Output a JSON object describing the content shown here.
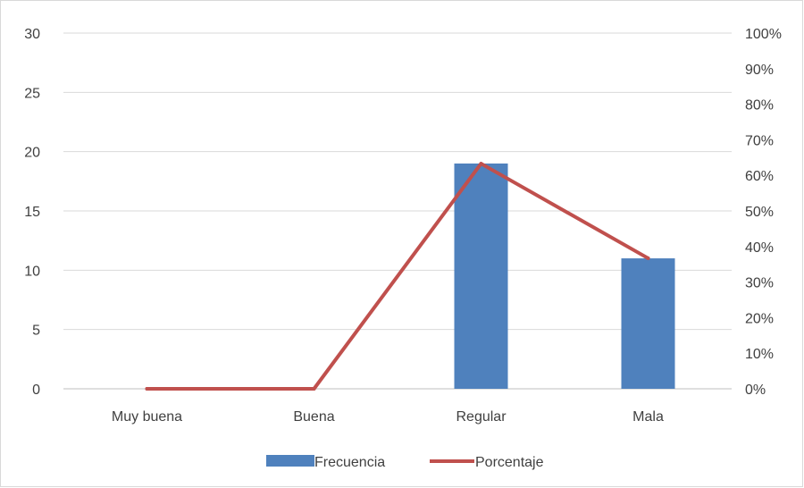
{
  "chart_data": {
    "type": "bar",
    "categories": [
      "Muy buena",
      "Buena",
      "Regular",
      "Mala"
    ],
    "series": [
      {
        "name": "Frecuencia",
        "type": "bar",
        "axis": "left",
        "values": [
          0,
          0,
          19,
          11
        ],
        "color": "#4f81bd"
      },
      {
        "name": "Porcentaje",
        "type": "line",
        "axis": "right",
        "values": [
          0,
          0,
          0.633,
          0.367
        ],
        "color": "#c0504d"
      }
    ],
    "y_left": {
      "lim": [
        0,
        30
      ],
      "ticks": [
        "0",
        "5",
        "10",
        "15",
        "20",
        "25",
        "30"
      ]
    },
    "y_right": {
      "lim": [
        0,
        1
      ],
      "ticks": [
        "0%",
        "10%",
        "20%",
        "30%",
        "40%",
        "50%",
        "60%",
        "70%",
        "80%",
        "90%",
        "100%"
      ]
    },
    "grid": true,
    "legend": {
      "position": "bottom",
      "items": [
        "Frecuencia",
        "Porcentaje"
      ]
    }
  }
}
